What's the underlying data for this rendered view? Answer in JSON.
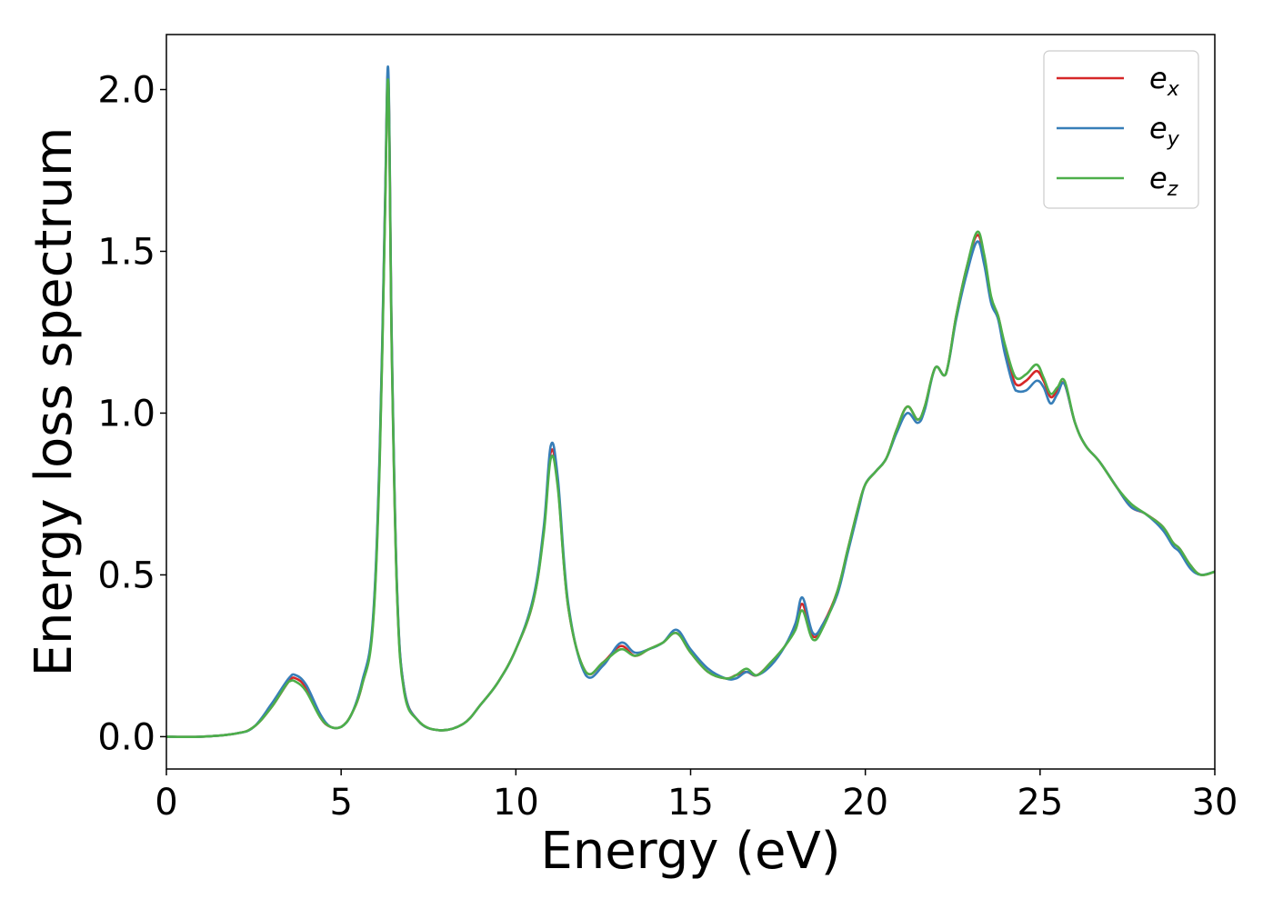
{
  "chart_data": {
    "type": "line",
    "title": "",
    "xlabel": "Energy (eV)",
    "ylabel": "Energy loss spectrum",
    "xlim": [
      0,
      30
    ],
    "ylim": [
      -0.1,
      2.17
    ],
    "xticks": [
      0,
      5,
      10,
      15,
      20,
      25,
      30
    ],
    "xtick_labels": [
      "0",
      "5",
      "10",
      "15",
      "20",
      "25",
      "30"
    ],
    "yticks": [
      0.0,
      0.5,
      1.0,
      1.5,
      2.0
    ],
    "ytick_labels": [
      "0.0",
      "0.5",
      "1.0",
      "1.5",
      "2.0"
    ],
    "grid": false,
    "legend_position": "top-right",
    "x": [
      0,
      1,
      2,
      2.5,
      3,
      3.5,
      3.7,
      4,
      4.4,
      4.7,
      5,
      5.3,
      5.6,
      5.9,
      6.1,
      6.25,
      6.35,
      6.45,
      6.6,
      6.8,
      7.2,
      7.8,
      8.5,
      9,
      9.5,
      10,
      10.5,
      10.8,
      11,
      11.2,
      11.5,
      12,
      12.5,
      13,
      13.4,
      13.8,
      14.2,
      14.6,
      15,
      15.5,
      16,
      16.3,
      16.6,
      16.9,
      17.3,
      17.7,
      18,
      18.2,
      18.5,
      18.8,
      19.2,
      19.5,
      19.8,
      20,
      20.3,
      20.6,
      20.9,
      21.2,
      21.5,
      21.7,
      22,
      22.3,
      22.6,
      22.9,
      23.2,
      23.4,
      23.6,
      23.8,
      24,
      24.3,
      24.6,
      24.9,
      25.1,
      25.3,
      25.5,
      25.7,
      26,
      26.3,
      26.7,
      27.2,
      27.6,
      28,
      28.5,
      28.8,
      29,
      29.3,
      29.6,
      30
    ],
    "series": [
      {
        "name": "e_x",
        "color": "#d62728",
        "values": [
          0.0,
          0.0,
          0.01,
          0.03,
          0.09,
          0.17,
          0.18,
          0.15,
          0.06,
          0.03,
          0.03,
          0.07,
          0.16,
          0.34,
          0.85,
          1.6,
          2.04,
          1.2,
          0.45,
          0.15,
          0.05,
          0.02,
          0.04,
          0.1,
          0.17,
          0.27,
          0.42,
          0.64,
          0.88,
          0.78,
          0.4,
          0.2,
          0.23,
          0.28,
          0.25,
          0.27,
          0.29,
          0.32,
          0.26,
          0.2,
          0.18,
          0.19,
          0.2,
          0.19,
          0.23,
          0.28,
          0.34,
          0.41,
          0.31,
          0.35,
          0.45,
          0.58,
          0.71,
          0.78,
          0.82,
          0.86,
          0.95,
          1.02,
          0.98,
          1.02,
          1.14,
          1.12,
          1.3,
          1.45,
          1.55,
          1.48,
          1.35,
          1.3,
          1.2,
          1.09,
          1.1,
          1.13,
          1.1,
          1.05,
          1.07,
          1.09,
          0.97,
          0.9,
          0.85,
          0.77,
          0.71,
          0.69,
          0.65,
          0.6,
          0.58,
          0.53,
          0.5,
          0.51
        ]
      },
      {
        "name": "e_y",
        "color": "#377eb8",
        "values": [
          0.0,
          0.0,
          0.01,
          0.03,
          0.1,
          0.18,
          0.19,
          0.16,
          0.07,
          0.03,
          0.03,
          0.07,
          0.17,
          0.35,
          0.87,
          1.62,
          2.06,
          1.22,
          0.46,
          0.15,
          0.05,
          0.02,
          0.04,
          0.1,
          0.17,
          0.27,
          0.43,
          0.65,
          0.9,
          0.8,
          0.41,
          0.19,
          0.22,
          0.29,
          0.26,
          0.27,
          0.29,
          0.33,
          0.27,
          0.21,
          0.18,
          0.18,
          0.2,
          0.19,
          0.22,
          0.28,
          0.35,
          0.43,
          0.32,
          0.35,
          0.44,
          0.57,
          0.7,
          0.78,
          0.82,
          0.86,
          0.94,
          1.0,
          0.97,
          1.01,
          1.14,
          1.12,
          1.29,
          1.43,
          1.53,
          1.46,
          1.34,
          1.29,
          1.18,
          1.07,
          1.07,
          1.1,
          1.08,
          1.03,
          1.06,
          1.09,
          0.97,
          0.9,
          0.85,
          0.77,
          0.71,
          0.69,
          0.64,
          0.59,
          0.57,
          0.52,
          0.5,
          0.51
        ]
      },
      {
        "name": "e_z",
        "color": "#4daf4a",
        "values": [
          0.0,
          0.0,
          0.01,
          0.03,
          0.09,
          0.17,
          0.17,
          0.14,
          0.06,
          0.03,
          0.03,
          0.07,
          0.16,
          0.33,
          0.83,
          1.58,
          2.02,
          1.18,
          0.44,
          0.14,
          0.05,
          0.02,
          0.04,
          0.1,
          0.17,
          0.27,
          0.42,
          0.63,
          0.86,
          0.77,
          0.4,
          0.2,
          0.23,
          0.27,
          0.25,
          0.27,
          0.29,
          0.32,
          0.26,
          0.2,
          0.18,
          0.19,
          0.21,
          0.19,
          0.23,
          0.28,
          0.33,
          0.39,
          0.3,
          0.34,
          0.45,
          0.58,
          0.71,
          0.78,
          0.82,
          0.86,
          0.95,
          1.02,
          0.98,
          1.02,
          1.14,
          1.12,
          1.3,
          1.45,
          1.56,
          1.49,
          1.36,
          1.3,
          1.21,
          1.11,
          1.12,
          1.15,
          1.11,
          1.06,
          1.08,
          1.1,
          0.97,
          0.9,
          0.85,
          0.77,
          0.72,
          0.69,
          0.65,
          0.6,
          0.58,
          0.53,
          0.5,
          0.51
        ]
      }
    ],
    "legend": [
      {
        "base": "e",
        "sub": "x",
        "color": "#d62728"
      },
      {
        "base": "e",
        "sub": "y",
        "color": "#377eb8"
      },
      {
        "base": "e",
        "sub": "z",
        "color": "#4daf4a"
      }
    ]
  }
}
